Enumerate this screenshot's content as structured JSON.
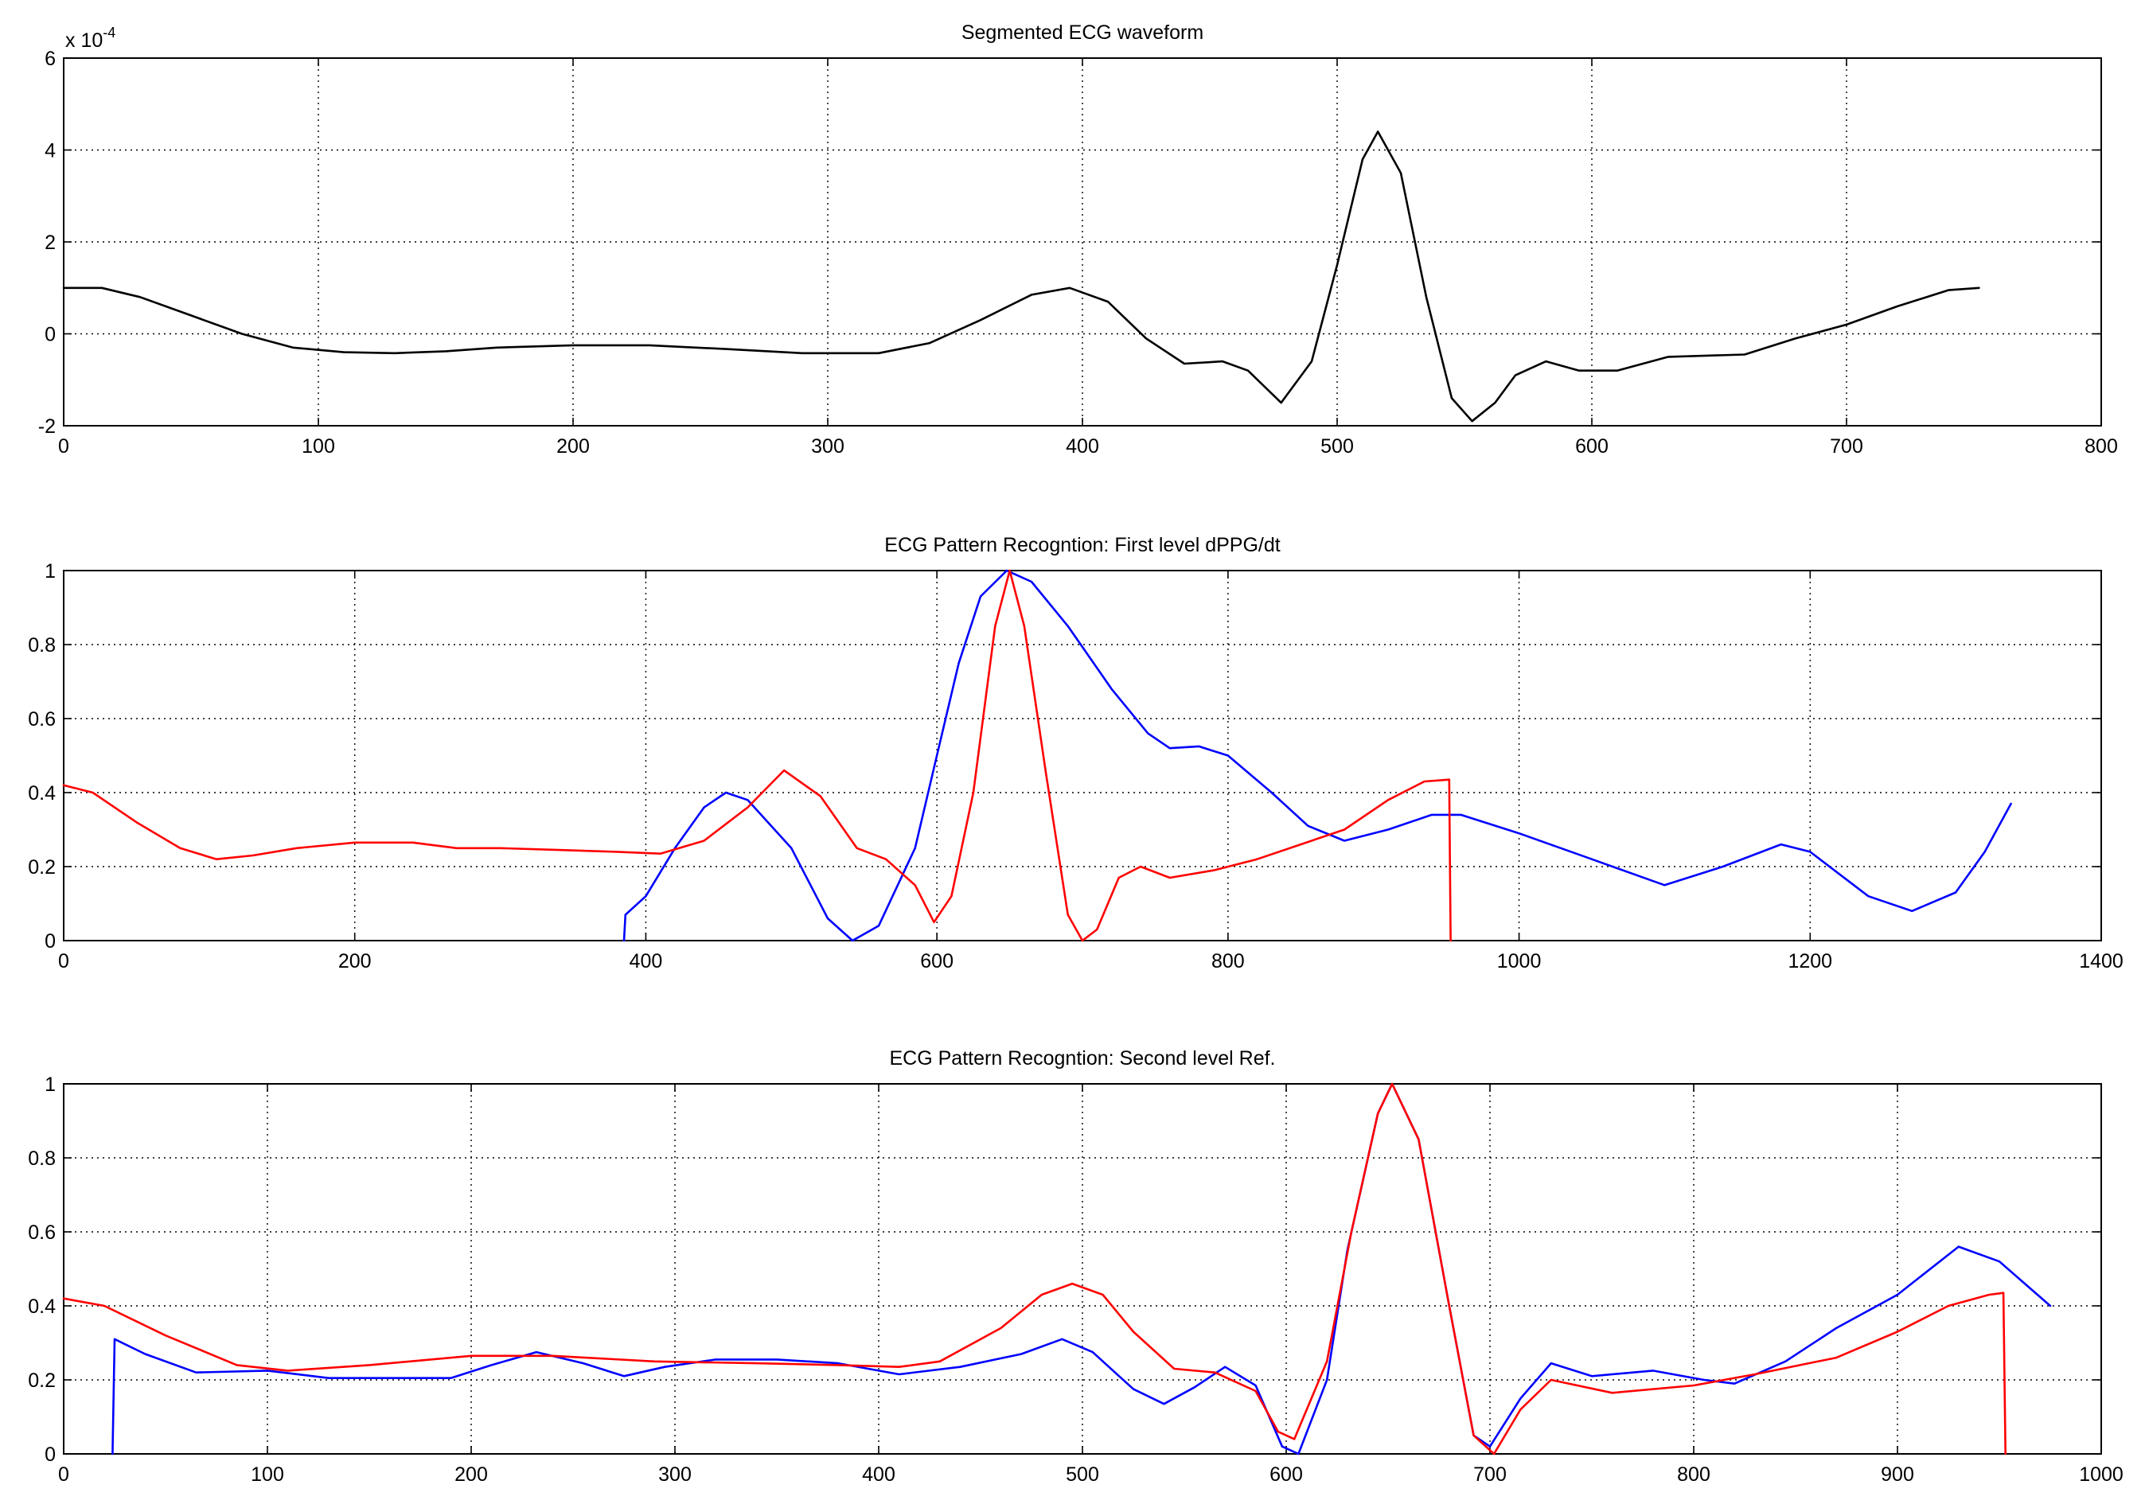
{
  "chart_data": [
    {
      "type": "line",
      "title": "Segmented ECG waveform",
      "xlabel": "",
      "ylabel": "",
      "xlim": [
        0,
        800
      ],
      "ylim": [
        -2,
        6
      ],
      "xticks": [
        0,
        100,
        200,
        300,
        400,
        500,
        600,
        700,
        800
      ],
      "yticks": [
        -2,
        0,
        2,
        4,
        6
      ],
      "y_exponent_label": {
        "base": "x 10",
        "exponent": "-4"
      },
      "grid": true,
      "series": [
        {
          "color": "#000000",
          "points": [
            [
              0,
              1.0
            ],
            [
              15,
              1.0
            ],
            [
              30,
              0.8
            ],
            [
              50,
              0.4
            ],
            [
              70,
              0.0
            ],
            [
              90,
              -0.3
            ],
            [
              110,
              -0.4
            ],
            [
              130,
              -0.42
            ],
            [
              150,
              -0.38
            ],
            [
              170,
              -0.3
            ],
            [
              200,
              -0.25
            ],
            [
              230,
              -0.25
            ],
            [
              260,
              -0.33
            ],
            [
              290,
              -0.42
            ],
            [
              320,
              -0.42
            ],
            [
              340,
              -0.2
            ],
            [
              360,
              0.3
            ],
            [
              380,
              0.85
            ],
            [
              395,
              1.0
            ],
            [
              410,
              0.7
            ],
            [
              425,
              -0.1
            ],
            [
              440,
              -0.65
            ],
            [
              455,
              -0.6
            ],
            [
              465,
              -0.8
            ],
            [
              478,
              -1.5
            ],
            [
              490,
              -0.6
            ],
            [
              500,
              1.5
            ],
            [
              510,
              3.8
            ],
            [
              516,
              4.4
            ],
            [
              525,
              3.5
            ],
            [
              535,
              0.8
            ],
            [
              545,
              -1.4
            ],
            [
              553,
              -1.9
            ],
            [
              562,
              -1.5
            ],
            [
              570,
              -0.9
            ],
            [
              582,
              -0.6
            ],
            [
              595,
              -0.8
            ],
            [
              610,
              -0.8
            ],
            [
              630,
              -0.5
            ],
            [
              660,
              -0.45
            ],
            [
              680,
              -0.1
            ],
            [
              700,
              0.2
            ],
            [
              720,
              0.6
            ],
            [
              740,
              0.95
            ],
            [
              752,
              1.0
            ]
          ]
        }
      ]
    },
    {
      "type": "line",
      "title": "ECG Pattern Recogntion: First level dPPG/dt",
      "xlabel": "",
      "ylabel": "",
      "xlim": [
        0,
        1400
      ],
      "ylim": [
        0,
        1
      ],
      "xticks": [
        0,
        200,
        400,
        600,
        800,
        1000,
        1200,
        1400
      ],
      "yticks": [
        0,
        0.2,
        0.4,
        0.6,
        0.8,
        1
      ],
      "yticklabels": [
        "0",
        "0.2",
        "0.4",
        "0.6",
        "0.8",
        "1"
      ],
      "grid": true,
      "series": [
        {
          "color": "#0000ff",
          "points": [
            [
              385,
              0
            ],
            [
              386,
              0.07
            ],
            [
              400,
              0.12
            ],
            [
              420,
              0.25
            ],
            [
              440,
              0.36
            ],
            [
              455,
              0.4
            ],
            [
              470,
              0.38
            ],
            [
              500,
              0.25
            ],
            [
              525,
              0.06
            ],
            [
              542,
              0.0
            ],
            [
              560,
              0.04
            ],
            [
              585,
              0.25
            ],
            [
              600,
              0.5
            ],
            [
              615,
              0.75
            ],
            [
              630,
              0.93
            ],
            [
              648,
              1.0
            ],
            [
              665,
              0.97
            ],
            [
              690,
              0.85
            ],
            [
              720,
              0.68
            ],
            [
              745,
              0.56
            ],
            [
              760,
              0.52
            ],
            [
              780,
              0.525
            ],
            [
              800,
              0.5
            ],
            [
              830,
              0.4
            ],
            [
              855,
              0.31
            ],
            [
              880,
              0.27
            ],
            [
              910,
              0.3
            ],
            [
              940,
              0.34
            ],
            [
              960,
              0.34
            ],
            [
              1000,
              0.29
            ],
            [
              1050,
              0.22
            ],
            [
              1100,
              0.15
            ],
            [
              1140,
              0.2
            ],
            [
              1180,
              0.26
            ],
            [
              1200,
              0.24
            ],
            [
              1240,
              0.12
            ],
            [
              1270,
              0.08
            ],
            [
              1300,
              0.13
            ],
            [
              1320,
              0.24
            ],
            [
              1338,
              0.37
            ]
          ]
        },
        {
          "color": "#ff0000",
          "points": [
            [
              0,
              0.42
            ],
            [
              20,
              0.4
            ],
            [
              50,
              0.32
            ],
            [
              80,
              0.25
            ],
            [
              105,
              0.22
            ],
            [
              130,
              0.23
            ],
            [
              160,
              0.25
            ],
            [
              200,
              0.265
            ],
            [
              240,
              0.265
            ],
            [
              270,
              0.25
            ],
            [
              300,
              0.25
            ],
            [
              340,
              0.245
            ],
            [
              380,
              0.24
            ],
            [
              410,
              0.235
            ],
            [
              440,
              0.27
            ],
            [
              470,
              0.36
            ],
            [
              495,
              0.46
            ],
            [
              520,
              0.39
            ],
            [
              545,
              0.25
            ],
            [
              565,
              0.22
            ],
            [
              585,
              0.15
            ],
            [
              598,
              0.05
            ],
            [
              610,
              0.12
            ],
            [
              625,
              0.4
            ],
            [
              640,
              0.85
            ],
            [
              650,
              1.0
            ],
            [
              660,
              0.85
            ],
            [
              675,
              0.45
            ],
            [
              690,
              0.07
            ],
            [
              700,
              0.0
            ],
            [
              710,
              0.03
            ],
            [
              725,
              0.17
            ],
            [
              740,
              0.2
            ],
            [
              760,
              0.17
            ],
            [
              790,
              0.19
            ],
            [
              820,
              0.22
            ],
            [
              850,
              0.26
            ],
            [
              880,
              0.3
            ],
            [
              910,
              0.38
            ],
            [
              935,
              0.43
            ],
            [
              952,
              0.435
            ],
            [
              953,
              0.0
            ]
          ]
        }
      ]
    },
    {
      "type": "line",
      "title": "ECG Pattern Recogntion: Second level Ref.",
      "xlabel": "",
      "ylabel": "",
      "xlim": [
        0,
        1000
      ],
      "ylim": [
        0,
        1
      ],
      "xticks": [
        0,
        100,
        200,
        300,
        400,
        500,
        600,
        700,
        800,
        900,
        1000
      ],
      "yticks": [
        0,
        0.2,
        0.4,
        0.6,
        0.8,
        1
      ],
      "yticklabels": [
        "0",
        "0.2",
        "0.4",
        "0.6",
        "0.8",
        "1"
      ],
      "grid": true,
      "series": [
        {
          "color": "#0000ff",
          "points": [
            [
              24,
              0
            ],
            [
              25,
              0.31
            ],
            [
              40,
              0.27
            ],
            [
              65,
              0.22
            ],
            [
              100,
              0.225
            ],
            [
              130,
              0.205
            ],
            [
              160,
              0.205
            ],
            [
              190,
              0.205
            ],
            [
              210,
              0.24
            ],
            [
              232,
              0.275
            ],
            [
              255,
              0.245
            ],
            [
              275,
              0.21
            ],
            [
              295,
              0.235
            ],
            [
              320,
              0.255
            ],
            [
              350,
              0.255
            ],
            [
              380,
              0.245
            ],
            [
              410,
              0.215
            ],
            [
              440,
              0.235
            ],
            [
              470,
              0.27
            ],
            [
              490,
              0.31
            ],
            [
              505,
              0.275
            ],
            [
              525,
              0.175
            ],
            [
              540,
              0.135
            ],
            [
              555,
              0.18
            ],
            [
              570,
              0.235
            ],
            [
              585,
              0.185
            ],
            [
              598,
              0.02
            ],
            [
              606,
              0.0
            ],
            [
              620,
              0.2
            ],
            [
              630,
              0.55
            ],
            [
              645,
              0.92
            ],
            [
              652,
              1.0
            ],
            [
              665,
              0.85
            ],
            [
              680,
              0.4
            ],
            [
              692,
              0.05
            ],
            [
              700,
              0.02
            ],
            [
              715,
              0.15
            ],
            [
              730,
              0.245
            ],
            [
              750,
              0.21
            ],
            [
              780,
              0.225
            ],
            [
              805,
              0.2
            ],
            [
              820,
              0.19
            ],
            [
              845,
              0.25
            ],
            [
              870,
              0.34
            ],
            [
              900,
              0.43
            ],
            [
              930,
              0.56
            ],
            [
              950,
              0.52
            ],
            [
              975,
              0.4
            ]
          ]
        },
        {
          "color": "#ff0000",
          "points": [
            [
              0,
              0.42
            ],
            [
              20,
              0.4
            ],
            [
              50,
              0.32
            ],
            [
              85,
              0.24
            ],
            [
              110,
              0.225
            ],
            [
              150,
              0.24
            ],
            [
              200,
              0.265
            ],
            [
              240,
              0.265
            ],
            [
              290,
              0.25
            ],
            [
              340,
              0.245
            ],
            [
              380,
              0.24
            ],
            [
              410,
              0.235
            ],
            [
              430,
              0.25
            ],
            [
              460,
              0.34
            ],
            [
              480,
              0.43
            ],
            [
              495,
              0.46
            ],
            [
              510,
              0.43
            ],
            [
              525,
              0.33
            ],
            [
              545,
              0.23
            ],
            [
              565,
              0.22
            ],
            [
              585,
              0.17
            ],
            [
              596,
              0.06
            ],
            [
              604,
              0.04
            ],
            [
              620,
              0.25
            ],
            [
              632,
              0.6
            ],
            [
              645,
              0.92
            ],
            [
              652,
              1.0
            ],
            [
              665,
              0.85
            ],
            [
              680,
              0.4
            ],
            [
              692,
              0.05
            ],
            [
              702,
              0.0
            ],
            [
              715,
              0.12
            ],
            [
              730,
              0.2
            ],
            [
              760,
              0.165
            ],
            [
              800,
              0.185
            ],
            [
              830,
              0.215
            ],
            [
              870,
              0.26
            ],
            [
              900,
              0.33
            ],
            [
              925,
              0.4
            ],
            [
              945,
              0.43
            ],
            [
              952,
              0.435
            ],
            [
              953,
              0.0
            ]
          ]
        }
      ]
    }
  ]
}
